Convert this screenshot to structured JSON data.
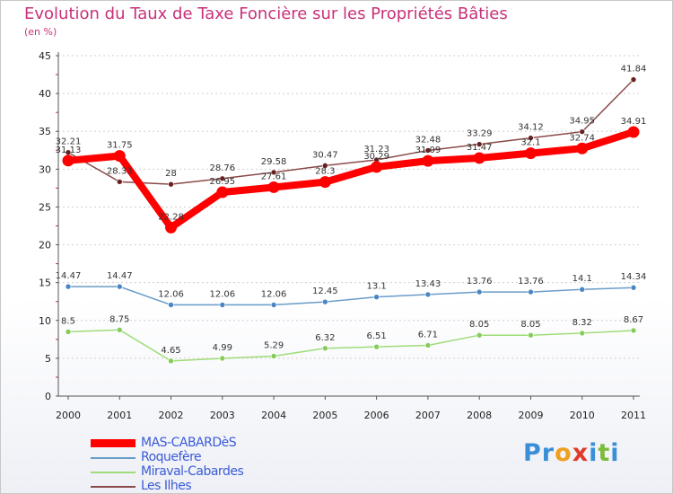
{
  "title": "Evolution du Taux de Taxe Foncière sur les Propriétés Bâties",
  "subtitle": "(en %)",
  "logo": {
    "letters": [
      "P",
      "r",
      "o",
      "x",
      "i",
      "t",
      "i"
    ],
    "colors": [
      "#3a8fd8",
      "#3a8fd8",
      "#f0a020",
      "#e03a2a",
      "#3a8fd8",
      "#7dbb3a",
      "#3a8fd8"
    ]
  },
  "chart_data": {
    "type": "line",
    "x": [
      "2000",
      "2001",
      "2002",
      "2003",
      "2004",
      "2005",
      "2006",
      "2007",
      "2008",
      "2009",
      "2010",
      "2011"
    ],
    "ylim": [
      0,
      45
    ],
    "yticks": [
      "0",
      "5",
      "10",
      "15",
      "20",
      "25",
      "30",
      "35",
      "40",
      "45"
    ],
    "series": [
      {
        "name": "MAS-CABARDèS",
        "color": "#ff0000",
        "marker": "#ff0000",
        "width": 8,
        "dot": 6.5,
        "values": [
          31.13,
          31.75,
          22.28,
          26.95,
          27.61,
          28.3,
          30.29,
          31.09,
          31.47,
          32.1,
          32.74,
          34.91
        ],
        "labels": [
          "31.13",
          "31.75",
          "22.28",
          "26.95",
          "27.61",
          "28.3",
          "30.29",
          "31.09",
          "31.47",
          "32.1",
          "32.74",
          "34.91"
        ]
      },
      {
        "name": "Roquefère",
        "color": "#6a9cc8",
        "marker": "#4a86c4",
        "width": 1.5,
        "dot": 3,
        "values": [
          14.47,
          14.47,
          12.06,
          12.06,
          12.06,
          12.45,
          13.1,
          13.43,
          13.76,
          13.76,
          14.1,
          14.34
        ],
        "labels": [
          "14.47",
          "14.47",
          "12.06",
          "12.06",
          "12.06",
          "12.45",
          "13.1",
          "13.43",
          "13.76",
          "13.76",
          "14.1",
          "14.34"
        ]
      },
      {
        "name": "Miraval-Cabardes",
        "color": "#9fdc78",
        "marker": "#86cc5a",
        "width": 1.5,
        "dot": 3,
        "values": [
          8.5,
          8.75,
          4.65,
          4.99,
          5.29,
          6.32,
          6.51,
          6.71,
          8.05,
          8.05,
          8.32,
          8.67
        ],
        "labels": [
          "8.5",
          "8.75",
          "4.65",
          "4.99",
          "5.29",
          "6.32",
          "6.51",
          "6.71",
          "8.05",
          "8.05",
          "8.32",
          "8.67"
        ]
      },
      {
        "name": "Les Ilhes",
        "color": "#8b4a4a",
        "marker": "#6a2020",
        "width": 1.5,
        "dot": 3,
        "values": [
          32.21,
          28.33,
          28,
          28.76,
          29.58,
          30.47,
          31.23,
          32.48,
          33.29,
          34.12,
          34.95,
          41.84
        ],
        "labels": [
          "32.21",
          "28.33",
          "28",
          "28.76",
          "29.58",
          "30.47",
          "31.23",
          "32.48",
          "33.29",
          "34.12",
          "34.95",
          "41.84"
        ]
      }
    ]
  }
}
